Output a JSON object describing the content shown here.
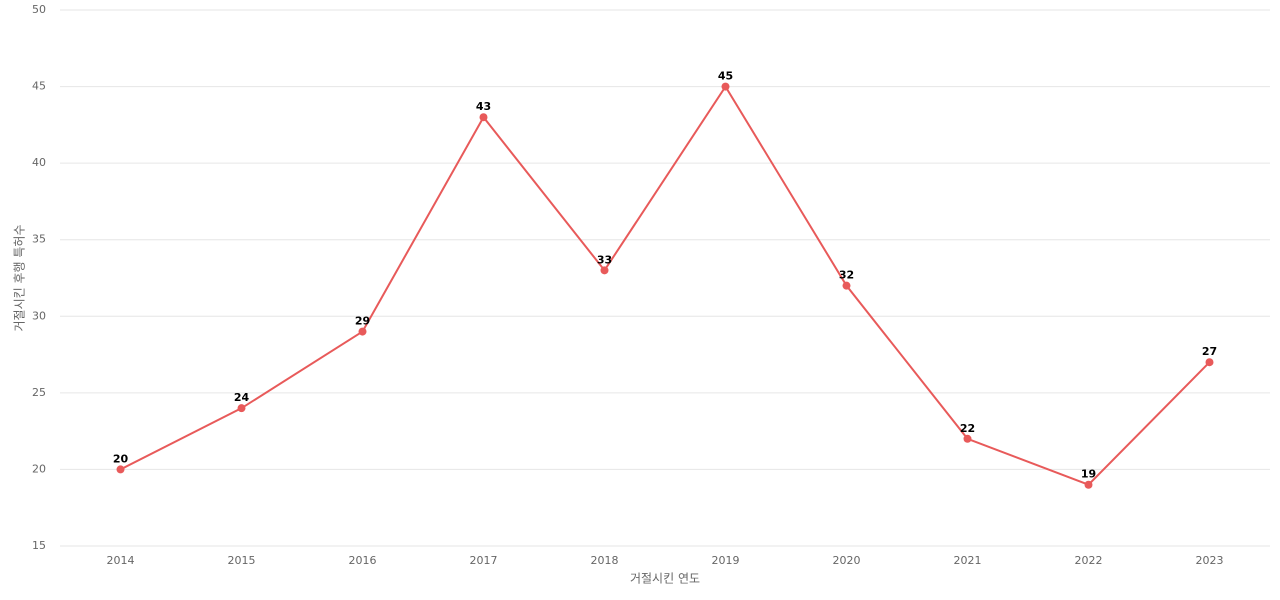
{
  "chart_data": {
    "type": "line",
    "x_label": "거절시킨 연도",
    "y_label": "거절시킨 후행 특허수",
    "categories": [
      "2014",
      "2015",
      "2016",
      "2017",
      "2018",
      "2019",
      "2020",
      "2021",
      "2022",
      "2023"
    ],
    "series": [
      {
        "name": "거절시킨 후행 특허수",
        "color": "#e85a5a",
        "values": [
          20,
          24,
          29,
          43,
          33,
          45,
          32,
          22,
          19,
          27
        ]
      }
    ],
    "ylim": [
      15,
      50
    ],
    "yticks": [
      15,
      20,
      25,
      30,
      35,
      40,
      45,
      50
    ],
    "grid": true
  }
}
